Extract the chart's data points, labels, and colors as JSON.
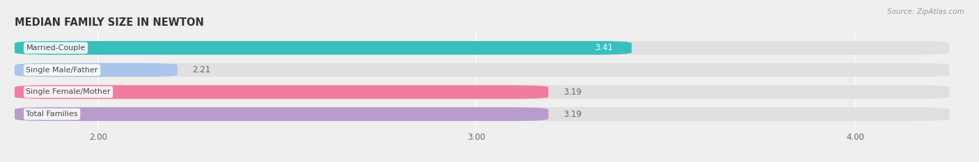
{
  "title": "MEDIAN FAMILY SIZE IN NEWTON",
  "source": "Source: ZipAtlas.com",
  "categories": [
    "Married-Couple",
    "Single Male/Father",
    "Single Female/Mother",
    "Total Families"
  ],
  "values": [
    3.41,
    2.21,
    3.19,
    3.19
  ],
  "colors": [
    "#3abfbf",
    "#aac4ea",
    "#f07ca0",
    "#b89ccc"
  ],
  "bar_height": 0.62,
  "xlim": [
    1.78,
    4.25
  ],
  "xticks": [
    2.0,
    3.0,
    4.0
  ],
  "xtick_labels": [
    "2.00",
    "3.00",
    "4.00"
  ],
  "value_color": "#666666",
  "label_color": "#444444",
  "bg_color": "#efefef",
  "bar_bg_color": "#e0e0e0",
  "title_color": "#333333",
  "source_color": "#999999",
  "value_label_colors": [
    "#ffffff",
    "#666666",
    "#666666",
    "#666666"
  ],
  "value_label_inside": [
    true,
    false,
    false,
    false
  ]
}
